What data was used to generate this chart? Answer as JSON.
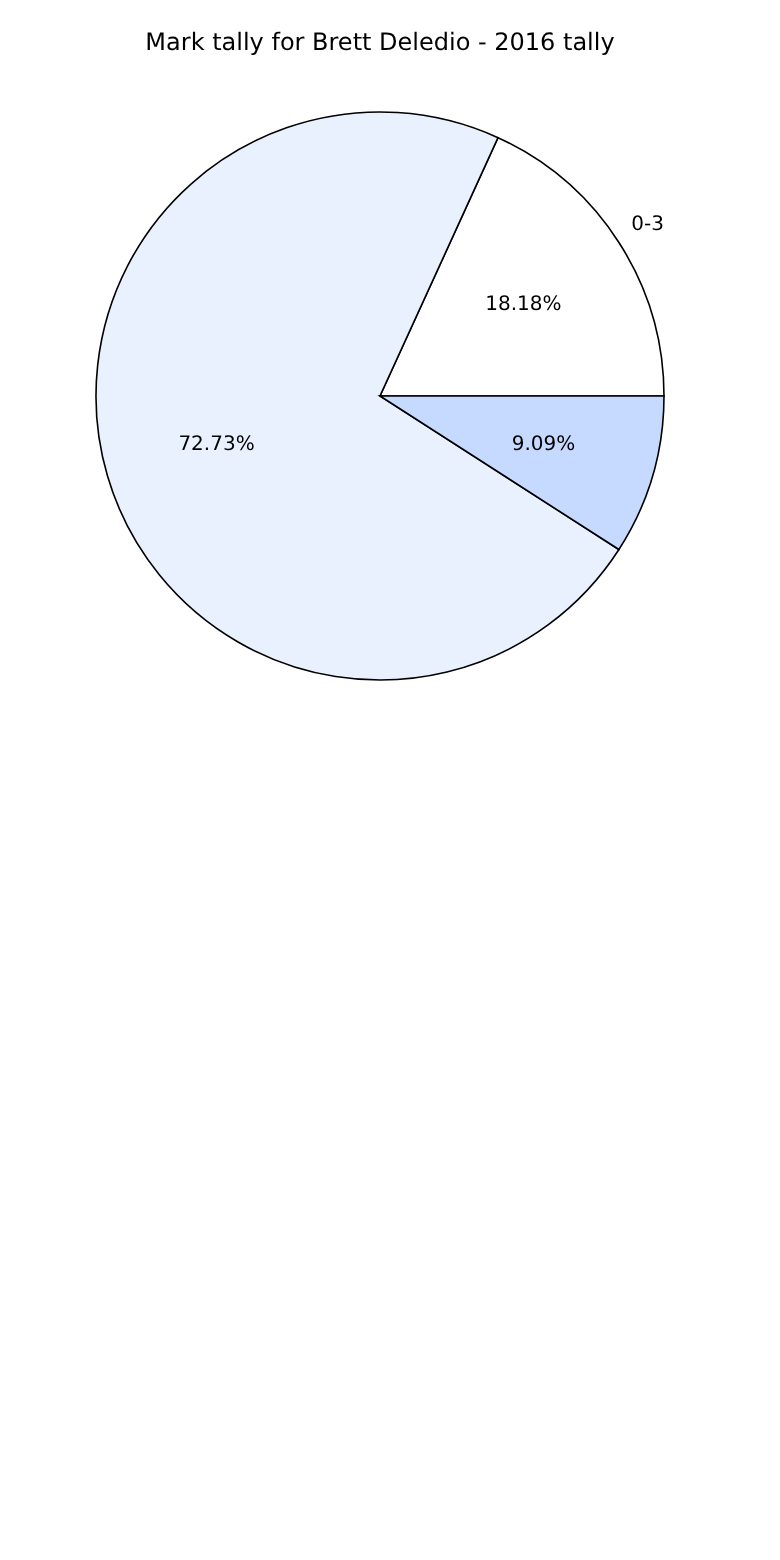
{
  "chart_data": {
    "type": "pie",
    "title": "Mark tally for Brett Deledio - 2016 tally",
    "categories": [
      "0-3",
      null,
      null
    ],
    "values": [
      18.18,
      72.73,
      9.09
    ],
    "value_labels": [
      "18.18%",
      "72.73%",
      "9.09%"
    ],
    "colors": [
      "#ffffff",
      "#eaf1fe",
      "#c6d9ff"
    ],
    "legend": false
  }
}
